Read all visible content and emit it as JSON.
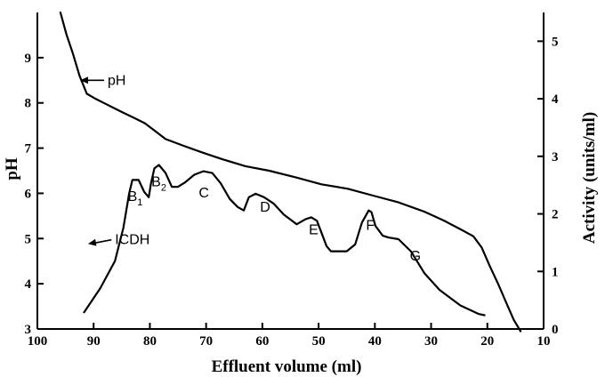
{
  "chart_data": {
    "type": "line",
    "title": "",
    "xlabel": "Effluent volume (ml)",
    "ylabel_left": "pH",
    "ylabel_right": "Activity (units/ml)",
    "x_range": [
      100,
      10
    ],
    "y_left_range": [
      3,
      10
    ],
    "y_right_range": [
      0,
      5.5
    ],
    "x_ticks": [
      "100",
      "90",
      "80",
      "70",
      "60",
      "50",
      "40",
      "30",
      "20",
      "10"
    ],
    "x_tick_values": [
      100,
      90,
      80,
      70,
      60,
      50,
      40,
      30,
      20,
      10
    ],
    "y_left_ticks": [
      "3",
      "4",
      "5",
      "6",
      "7",
      "8",
      "9"
    ],
    "y_left_tick_values": [
      3,
      4,
      5,
      6,
      7,
      8,
      9
    ],
    "y_right_ticks": [
      "0",
      "1",
      "2",
      "3",
      "4",
      "5"
    ],
    "y_right_tick_values": [
      0,
      1,
      2,
      3,
      4,
      5
    ],
    "grid": false,
    "legend": "none",
    "series": [
      {
        "name": "pH",
        "axis": "left",
        "x": [
          95.9,
          94.8,
          93.7,
          92.5,
          91.2,
          89.8,
          87.4,
          85.0,
          82.5,
          80.9,
          79.3,
          77.2,
          74.0,
          70.6,
          67.0,
          63.0,
          58.8,
          54.0,
          49.5,
          44.8,
          40.3,
          35.8,
          31.3,
          27.8,
          24.7,
          22.5,
          21.0,
          19.6,
          18.1,
          16.7,
          15.3,
          14.1
        ],
        "y": [
          10.0,
          9.5,
          9.1,
          8.6,
          8.2,
          8.1,
          7.95,
          7.8,
          7.65,
          7.55,
          7.4,
          7.2,
          7.05,
          6.9,
          6.75,
          6.6,
          6.5,
          6.35,
          6.2,
          6.1,
          5.95,
          5.8,
          5.6,
          5.4,
          5.2,
          5.05,
          4.8,
          4.4,
          4.0,
          3.6,
          3.2,
          2.95
        ]
      },
      {
        "name": "ICDH",
        "axis": "right",
        "x": [
          91.7,
          88.8,
          86.2,
          84.7,
          83.7,
          83.1,
          82.0,
          81.0,
          80.2,
          79.8,
          79.2,
          78.4,
          77.2,
          76.1,
          75.0,
          73.7,
          72.1,
          70.5,
          68.9,
          67.4,
          65.8,
          64.4,
          63.3,
          62.4,
          61.2,
          59.7,
          58.0,
          56.2,
          53.9,
          52.3,
          51.3,
          50.3,
          49.4,
          48.6,
          47.8,
          47.0,
          45.0,
          43.5,
          42.3,
          41.1,
          40.6,
          39.9,
          38.6,
          37.6,
          35.8,
          33.6,
          31.2,
          28.5,
          24.8,
          21.5,
          20.5
        ],
        "y": [
          0.29,
          0.71,
          1.18,
          1.76,
          2.35,
          2.59,
          2.59,
          2.38,
          2.29,
          2.53,
          2.79,
          2.85,
          2.71,
          2.47,
          2.47,
          2.55,
          2.68,
          2.74,
          2.71,
          2.53,
          2.26,
          2.12,
          2.06,
          2.29,
          2.35,
          2.29,
          2.18,
          1.99,
          1.82,
          1.91,
          1.94,
          1.88,
          1.65,
          1.44,
          1.35,
          1.35,
          1.35,
          1.47,
          1.85,
          2.06,
          2.03,
          1.79,
          1.62,
          1.59,
          1.56,
          1.35,
          0.97,
          0.68,
          0.41,
          0.26,
          0.24
        ]
      }
    ],
    "annotations": [
      {
        "label": "pH",
        "x": 87.5,
        "y": 8.5,
        "axis": "left",
        "arrow_to": [
          92.4,
          8.5
        ]
      },
      {
        "label": "ICDH",
        "x": 86.2,
        "y": 1.55,
        "axis": "right",
        "arrow_to": [
          91.0,
          1.48
        ]
      },
      {
        "label": "B",
        "sub": "1",
        "x": 82.6,
        "y": 2.3,
        "axis": "right"
      },
      {
        "label": "B",
        "sub": "2",
        "x": 78.4,
        "y": 2.56,
        "axis": "right"
      },
      {
        "label": "C",
        "x": 70.4,
        "y": 2.36,
        "axis": "right"
      },
      {
        "label": "D",
        "x": 59.5,
        "y": 2.12,
        "axis": "right"
      },
      {
        "label": "E",
        "x": 50.9,
        "y": 1.72,
        "axis": "right"
      },
      {
        "label": "F",
        "x": 40.8,
        "y": 1.8,
        "axis": "right"
      },
      {
        "label": "G",
        "x": 32.8,
        "y": 1.27,
        "axis": "right"
      }
    ]
  }
}
